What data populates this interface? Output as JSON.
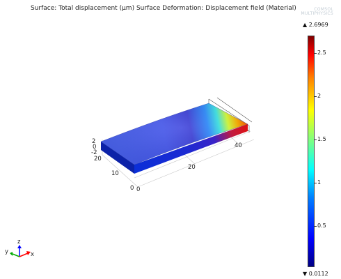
{
  "title": "Surface: Total displacement (µm)    Surface Deformation: Displacement field (Material)",
  "logo": {
    "line1": "COMSOL",
    "line2": "MULTIPHYSICS"
  },
  "colorbar": {
    "max_label": "▲ 2.6969",
    "min_label": "▼ 0.0112",
    "ticks": [
      "2.5",
      "2",
      "1.5",
      "1",
      "0.5"
    ]
  },
  "axes": {
    "z_ticks": [
      "2",
      "0",
      "-2"
    ],
    "y_ticks": [
      "20",
      "10",
      "0"
    ],
    "x_ticks": [
      "0",
      "20",
      "40"
    ]
  },
  "triad": {
    "x": "x",
    "y": "y",
    "z": "z"
  },
  "colors": {
    "low": "#0000ff",
    "high": "#ff0000"
  }
}
